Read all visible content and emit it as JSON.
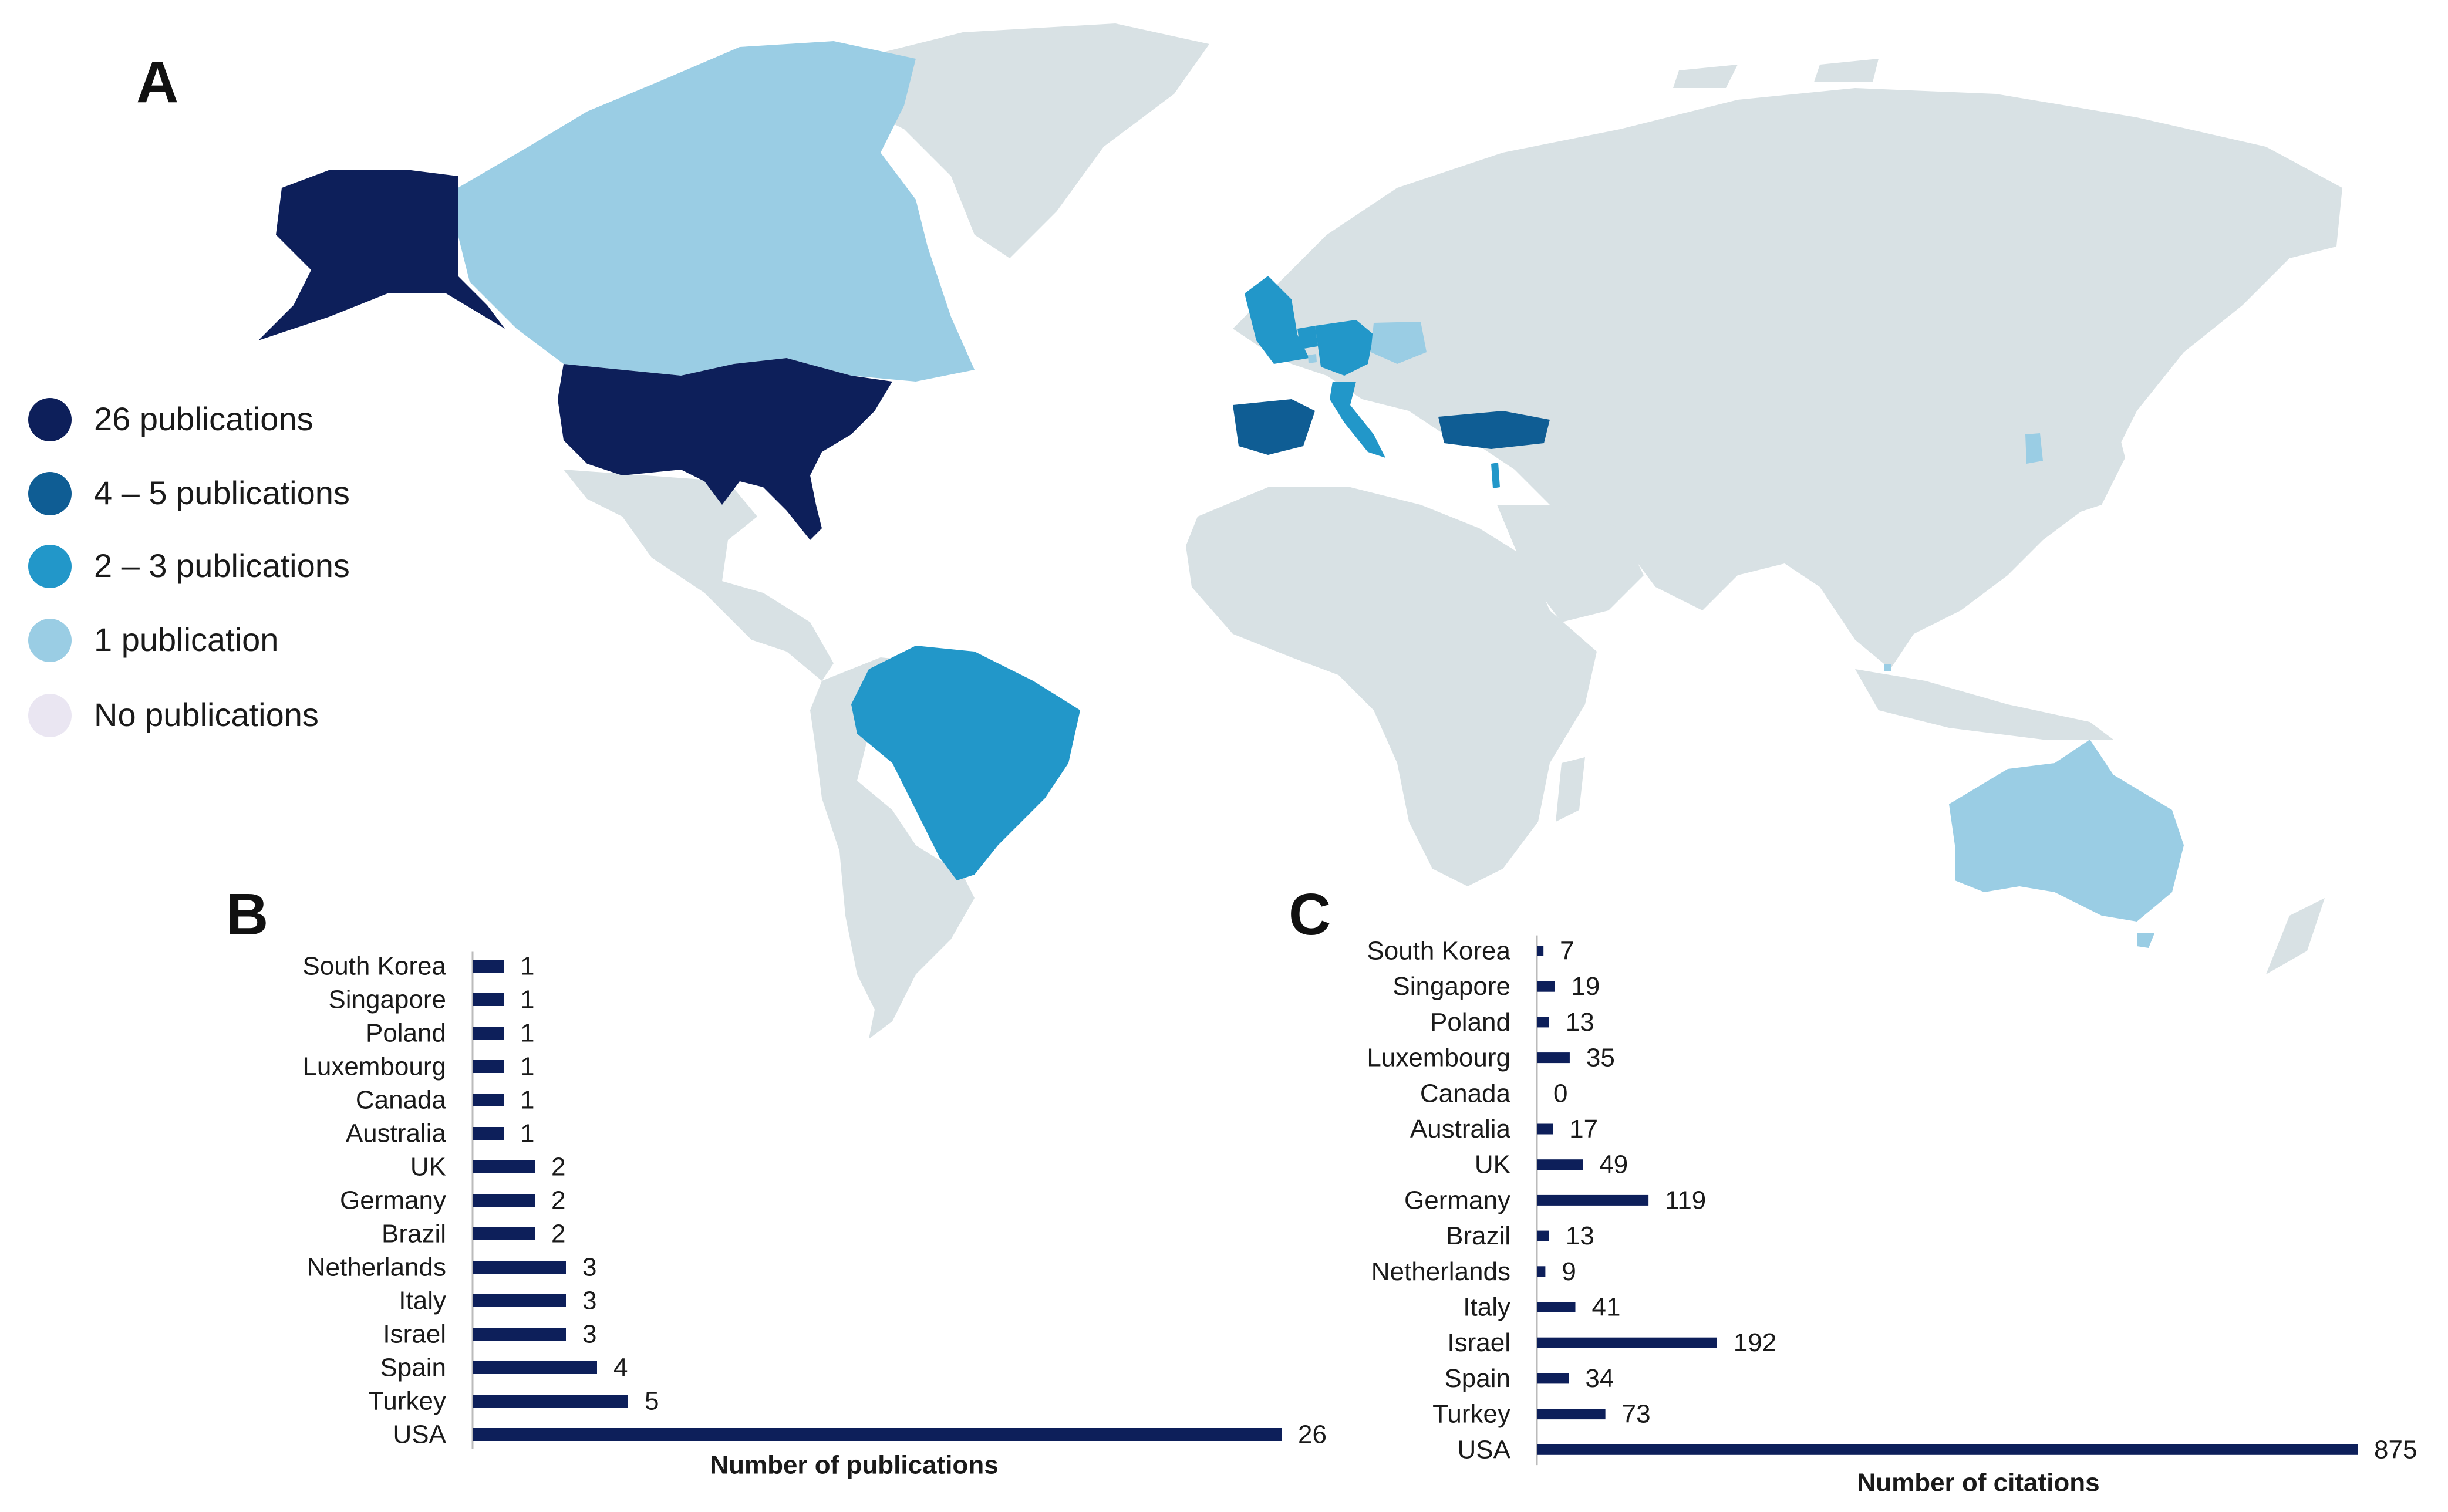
{
  "panel_labels": {
    "a": "A",
    "b": "B",
    "c": "C"
  },
  "colors": {
    "tier_26": "#0d1f5a",
    "tier_4_5": "#0f5d94",
    "tier_2_3": "#2297c9",
    "tier_1": "#9acde4",
    "tier_none": "#eae6f2",
    "land": "#d8e1e4",
    "bar": "#0d1f5a"
  },
  "legend": [
    {
      "label": "26 publications",
      "color": "#0d1f5a"
    },
    {
      "label": "4 – 5 publications",
      "color": "#0f5d94"
    },
    {
      "label": "2 – 3 publications",
      "color": "#2297c9"
    },
    {
      "label": "1 publication",
      "color": "#9acde4"
    },
    {
      "label": "No publications",
      "color": "#eae6f2"
    }
  ],
  "map_regions": [
    {
      "name": "USA",
      "tier": "26 publications"
    },
    {
      "name": "Turkey",
      "tier": "4 – 5 publications"
    },
    {
      "name": "Spain",
      "tier": "4 – 5 publications"
    },
    {
      "name": "Israel",
      "tier": "2 – 3 publications"
    },
    {
      "name": "Italy",
      "tier": "2 – 3 publications"
    },
    {
      "name": "Netherlands",
      "tier": "2 – 3 publications"
    },
    {
      "name": "Brazil",
      "tier": "2 – 3 publications"
    },
    {
      "name": "Germany",
      "tier": "2 – 3 publications"
    },
    {
      "name": "UK",
      "tier": "2 – 3 publications"
    },
    {
      "name": "Australia",
      "tier": "1 publication"
    },
    {
      "name": "Canada",
      "tier": "1 publication"
    },
    {
      "name": "Luxembourg",
      "tier": "1 publication"
    },
    {
      "name": "Poland",
      "tier": "1 publication"
    },
    {
      "name": "Singapore",
      "tier": "1 publication"
    },
    {
      "name": "South Korea",
      "tier": "1 publication"
    }
  ],
  "chart_data": [
    {
      "type": "bar",
      "orientation": "horizontal",
      "panel": "B",
      "categories": [
        "South Korea",
        "Singapore",
        "Poland",
        "Luxembourg",
        "Canada",
        "Australia",
        "UK",
        "Germany",
        "Brazil",
        "Netherlands",
        "Italy",
        "Israel",
        "Spain",
        "Turkey",
        "USA"
      ],
      "values": [
        1,
        1,
        1,
        1,
        1,
        1,
        2,
        2,
        2,
        3,
        3,
        3,
        4,
        5,
        26
      ],
      "data_labels": [
        "1",
        "1",
        "1",
        "1",
        "1",
        "1",
        "2",
        "2",
        "2",
        "3",
        "3",
        "3",
        "4",
        "5",
        "26"
      ],
      "xlabel": "Number of publications",
      "xlim": [
        0,
        26
      ],
      "grid": false
    },
    {
      "type": "bar",
      "orientation": "horizontal",
      "panel": "C",
      "categories": [
        "South Korea",
        "Singapore",
        "Poland",
        "Luxembourg",
        "Canada",
        "Australia",
        "UK",
        "Germany",
        "Brazil",
        "Netherlands",
        "Italy",
        "Israel",
        "Spain",
        "Turkey",
        "USA"
      ],
      "values": [
        7,
        19,
        13,
        35,
        0,
        17,
        49,
        119,
        13,
        9,
        41,
        192,
        34,
        73,
        875
      ],
      "data_labels": [
        "7",
        "19",
        "13",
        "35",
        "0",
        "17",
        "49",
        "119",
        "13",
        "9",
        "41",
        "192",
        "34",
        "73",
        "875"
      ],
      "xlabel": "Number of citations",
      "xlim": [
        0,
        875
      ],
      "grid": false
    }
  ]
}
